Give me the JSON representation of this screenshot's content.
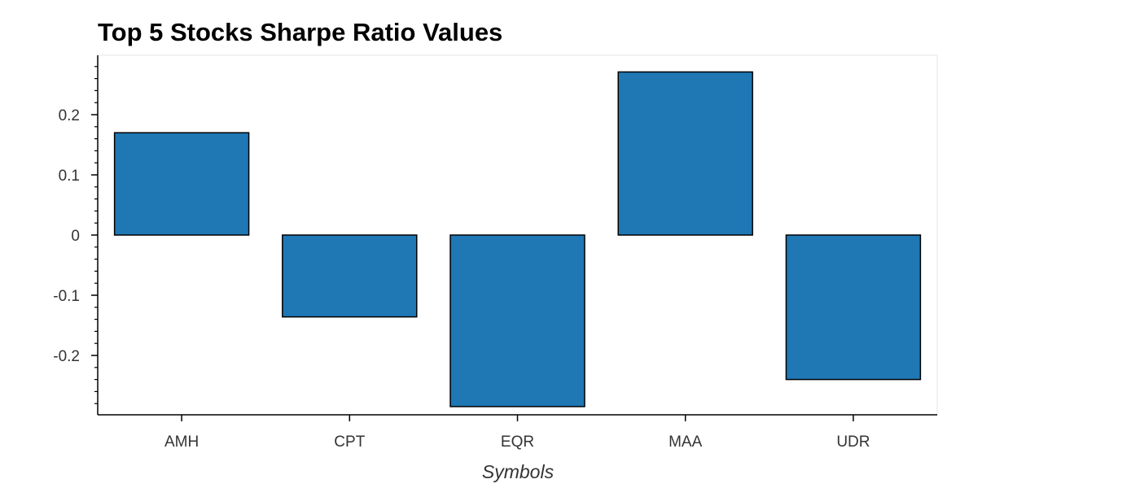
{
  "chart_data": {
    "type": "bar",
    "title": "Top 5 Stocks Sharpe Ratio Values",
    "xlabel": "Symbols",
    "ylabel": "",
    "categories": [
      "AMH",
      "CPT",
      "EQR",
      "MAA",
      "UDR"
    ],
    "values": [
      0.17,
      -0.136,
      -0.285,
      0.271,
      -0.24
    ],
    "ylim": [
      -0.3,
      0.3
    ],
    "yticks": [
      -0.2,
      -0.1,
      0,
      0.1,
      0.2
    ],
    "ytick_labels": [
      "-0.2",
      "-0.1",
      "0",
      "0.1",
      "0.2"
    ],
    "grid": false,
    "legend": "none",
    "bar_color": "#1f77b4",
    "bar_edge_color": "#000000"
  }
}
